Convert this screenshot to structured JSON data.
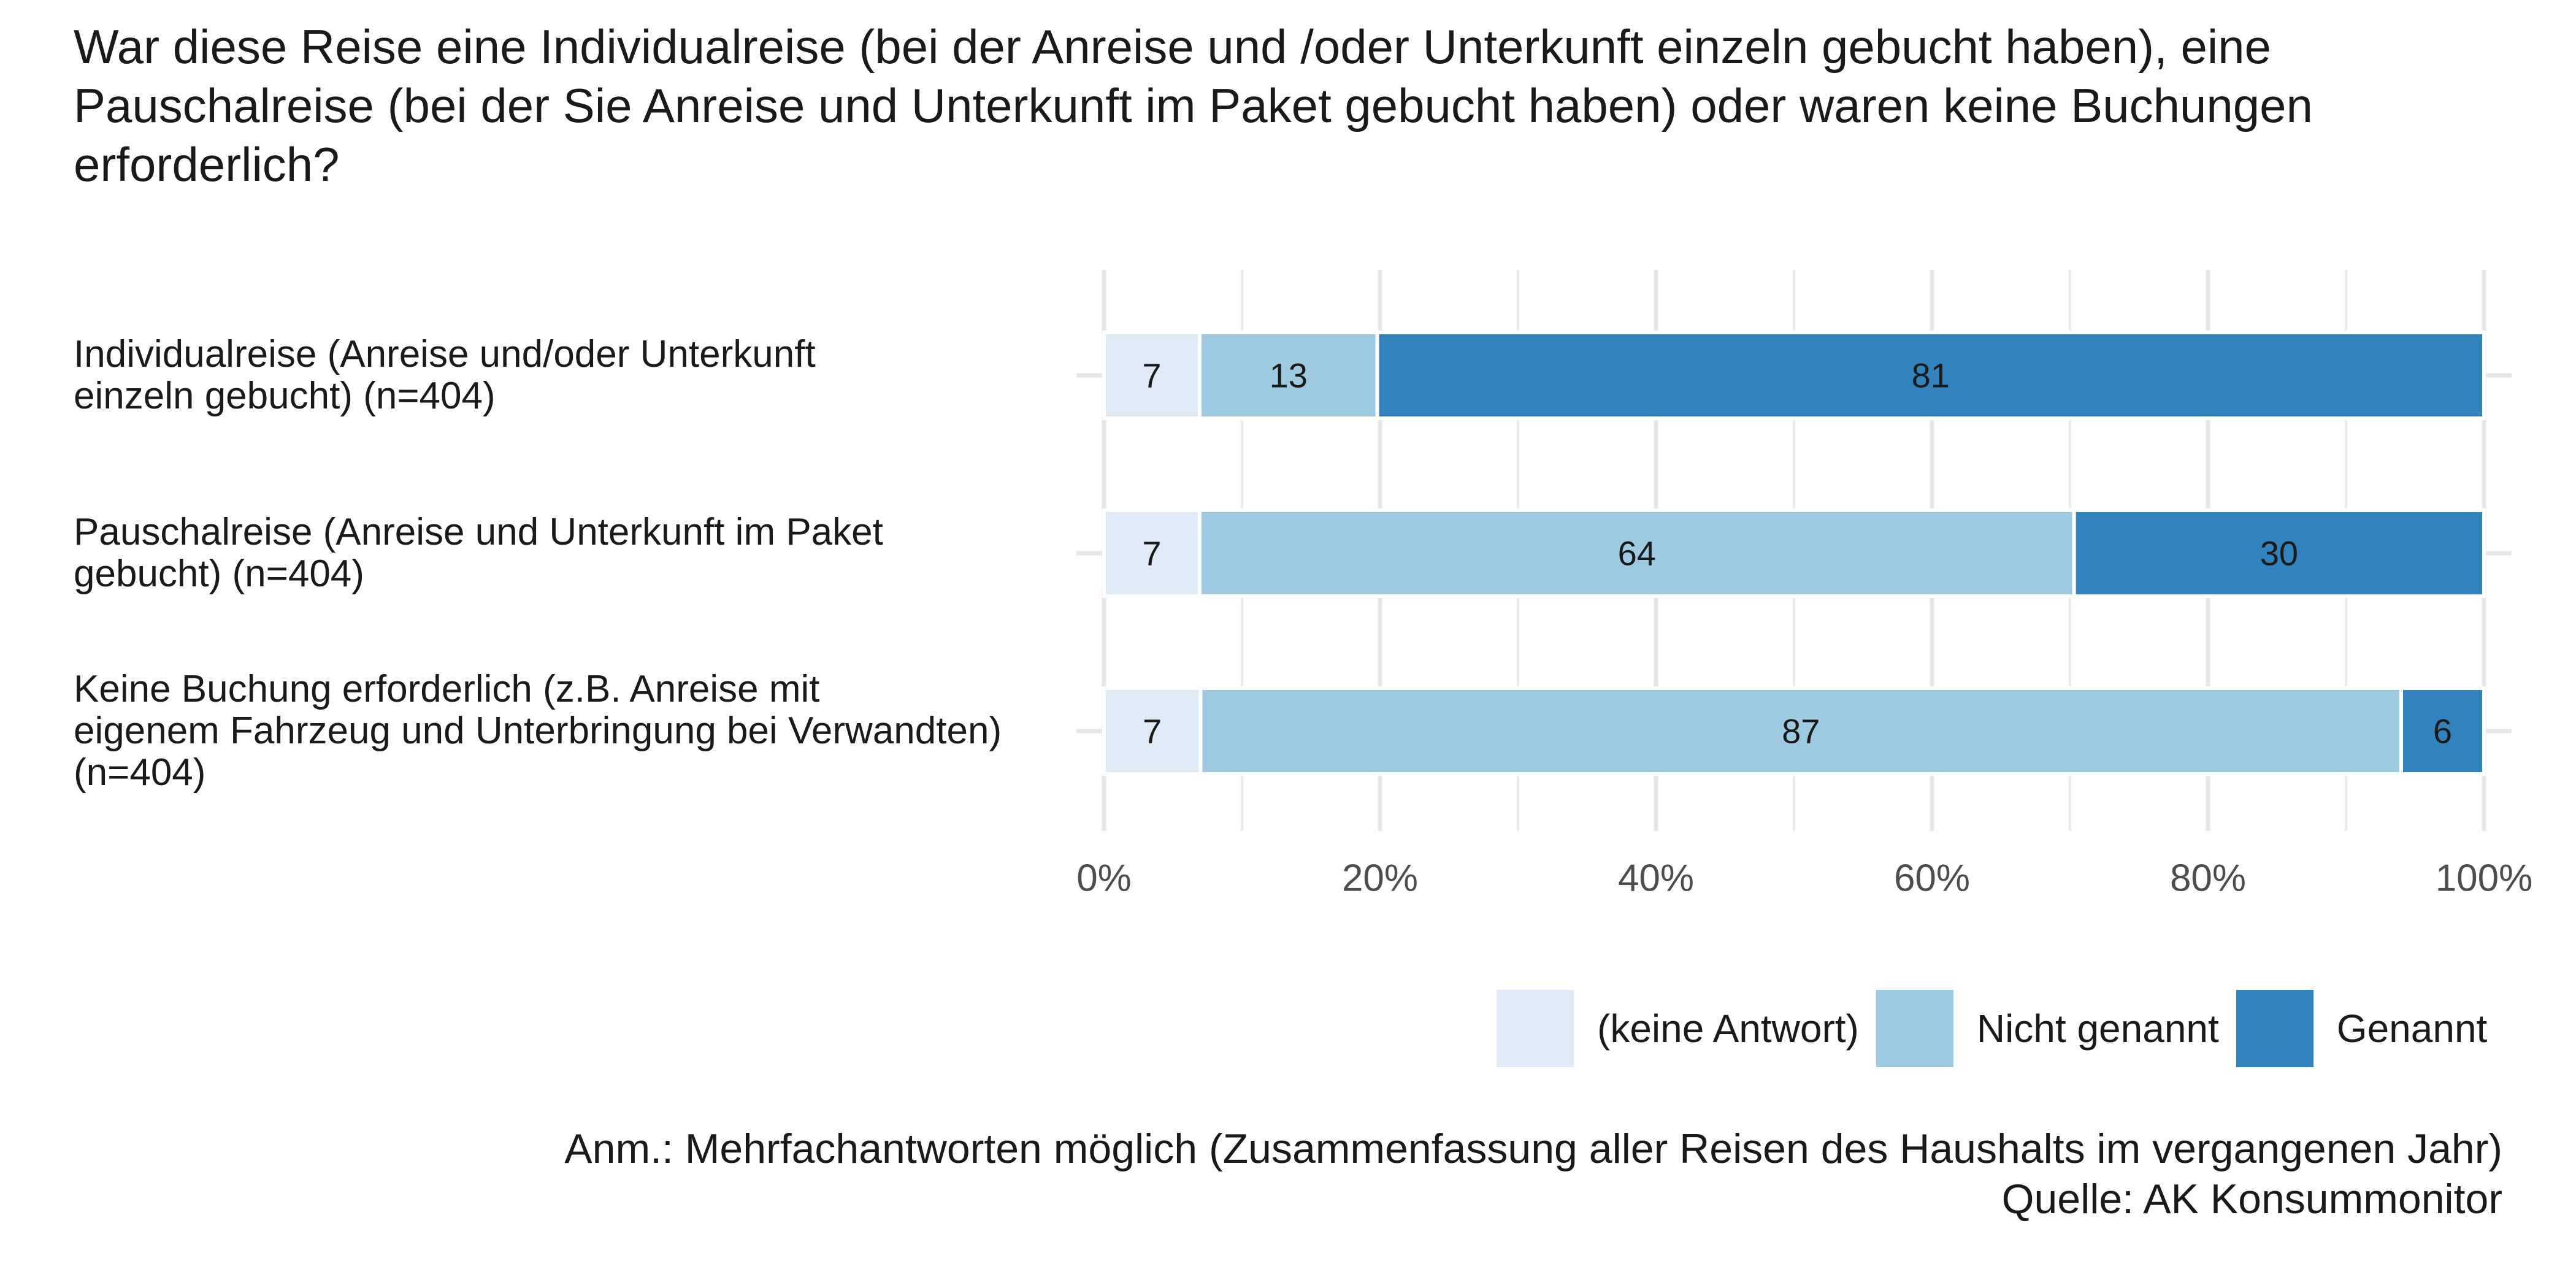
{
  "chart_data": {
    "type": "bar",
    "orientation": "horizontal",
    "stacked": true,
    "title": "War diese Reise eine Individualreise (bei der Anreise und /oder Unterkunft einzeln gebucht haben), eine Pauschalreise (bei der Sie Anreise und Unterkunft im Paket gebucht haben) oder waren keine Buchungen erforderlich?",
    "categories": [
      "Individualreise (Anreise und/oder Unterkunft\neinzeln gebucht) (n=404)",
      "Pauschalreise (Anreise und Unterkunft im Paket\ngebucht) (n=404)",
      "Keine Buchung erforderlich (z.B. Anreise mit\neigenem Fahrzeug und Unterbringung bei Verwandten)\n(n=404)"
    ],
    "series": [
      {
        "name": "(keine Antwort)",
        "color": "#deebf7",
        "values": [
          7,
          7,
          7
        ]
      },
      {
        "name": "Nicht genannt",
        "color": "#9ecae1",
        "values": [
          13,
          64,
          87
        ]
      },
      {
        "name": "Genannt",
        "color": "#3182bd",
        "values": [
          81,
          30,
          6
        ]
      }
    ],
    "xlim": [
      0,
      100
    ],
    "xticks": [
      "0%",
      "20%",
      "40%",
      "60%",
      "80%",
      "100%"
    ],
    "xlabel": "",
    "ylabel": "",
    "grid": true,
    "legend_position": "bottom-right"
  },
  "footnote": {
    "note": "Anm.: Mehrfachantworten möglich (Zusammenfassung aller Reisen des Haushalts im vergangenen Jahr)",
    "source": "Quelle: AK Konsummonitor"
  }
}
